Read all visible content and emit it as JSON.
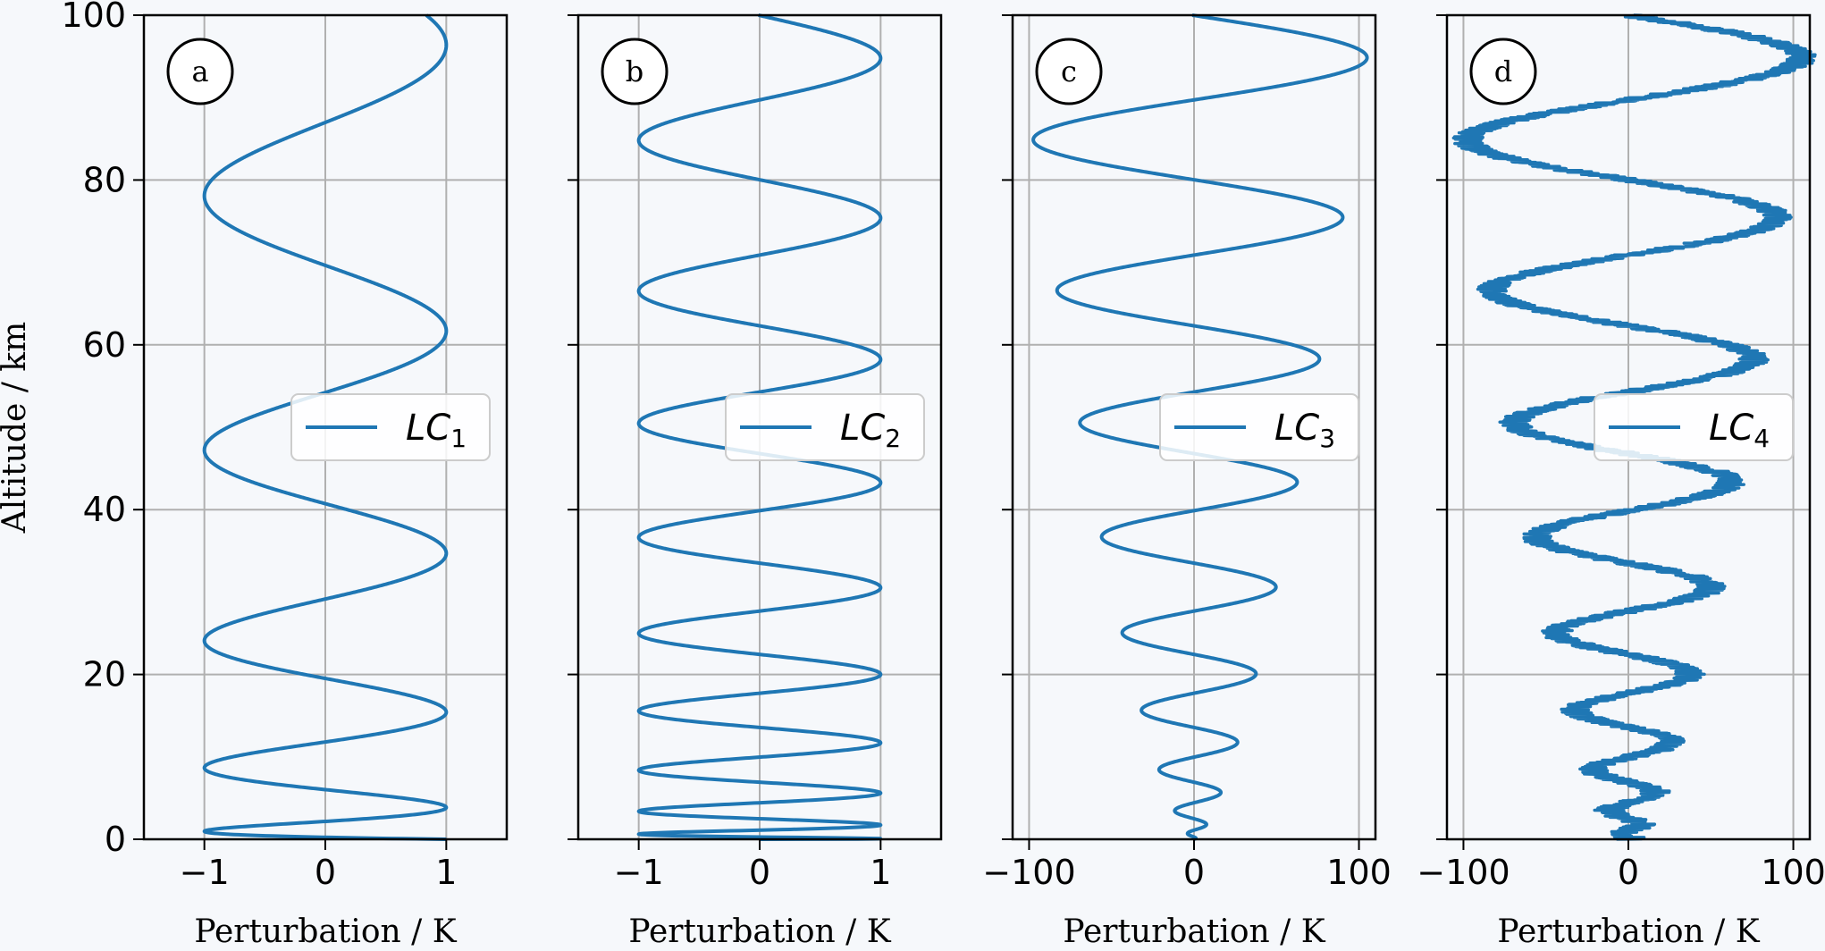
{
  "chart_data": [
    {
      "panel": "a",
      "type": "line",
      "legend": {
        "label": "LC",
        "subscript": "1",
        "placement": "center-right"
      },
      "xlabel": "Perturbation / K",
      "ylabel": "Altitude / km",
      "xlim": [
        -1.5,
        1.5
      ],
      "ylim": [
        0,
        100
      ],
      "xticks": [
        -1,
        0,
        1
      ],
      "xtick_labels": [
        "−1",
        "0",
        "1"
      ],
      "yticks": [
        0,
        20,
        40,
        60,
        80,
        100
      ],
      "ytick_labels": [
        "0",
        "20",
        "40",
        "60",
        "80",
        "100"
      ],
      "grid": true,
      "color": "#1f77b4",
      "series": [
        {
          "model": {
            "form": "cos",
            "alpha": 3.2,
            "amp0": 1,
            "amp_scale": 0,
            "noise": 0
          }
        }
      ]
    },
    {
      "panel": "b",
      "type": "line",
      "legend": {
        "label": "LC",
        "subscript": "2",
        "placement": "center-right"
      },
      "xlabel": "Perturbation / K",
      "ylabel": "",
      "xlim": [
        -1.5,
        1.5
      ],
      "ylim": [
        0,
        100
      ],
      "xticks": [
        -1,
        0,
        1
      ],
      "xtick_labels": [
        "−1",
        "0",
        "1"
      ],
      "yticks": [
        0,
        20,
        40,
        60,
        80,
        100
      ],
      "ytick_labels": [],
      "grid": true,
      "color": "#1f77b4",
      "series": [
        {
          "model": {
            "form": "sin",
            "alpha": 5.97,
            "amp0": 1,
            "amp_scale": 0,
            "noise": 0
          }
        }
      ]
    },
    {
      "panel": "c",
      "type": "line",
      "legend": {
        "label": "LC",
        "subscript": "3",
        "placement": "center-right"
      },
      "xlabel": "Perturbation / K",
      "ylabel": "",
      "xlim": [
        -110,
        110
      ],
      "ylim": [
        0,
        100
      ],
      "xticks": [
        -100,
        0,
        100
      ],
      "xtick_labels": [
        "−100",
        "0",
        "100"
      ],
      "yticks": [
        0,
        20,
        40,
        60,
        80,
        100
      ],
      "ytick_labels": [],
      "grid": true,
      "color": "#1f77b4",
      "series": [
        {
          "model": {
            "form": "sin",
            "alpha": 5.97,
            "amp0": 0,
            "amp_scale": 5.2,
            "noise": 0
          }
        }
      ]
    },
    {
      "panel": "d",
      "type": "line",
      "legend": {
        "label": "LC",
        "subscript": "4",
        "placement": "center-right"
      },
      "xlabel": "Perturbation / K",
      "ylabel": "",
      "xlim": [
        -110,
        110
      ],
      "ylim": [
        0,
        100
      ],
      "xticks": [
        -100,
        0,
        100
      ],
      "xtick_labels": [
        "−100",
        "0",
        "100"
      ],
      "yticks": [
        0,
        20,
        40,
        60,
        80,
        100
      ],
      "ytick_labels": [],
      "grid": true,
      "color": "#1f77b4",
      "series": [
        {
          "model": {
            "form": "sin",
            "alpha": 5.97,
            "amp0": 0,
            "amp_scale": 5.2,
            "noise": 9
          }
        }
      ]
    }
  ]
}
